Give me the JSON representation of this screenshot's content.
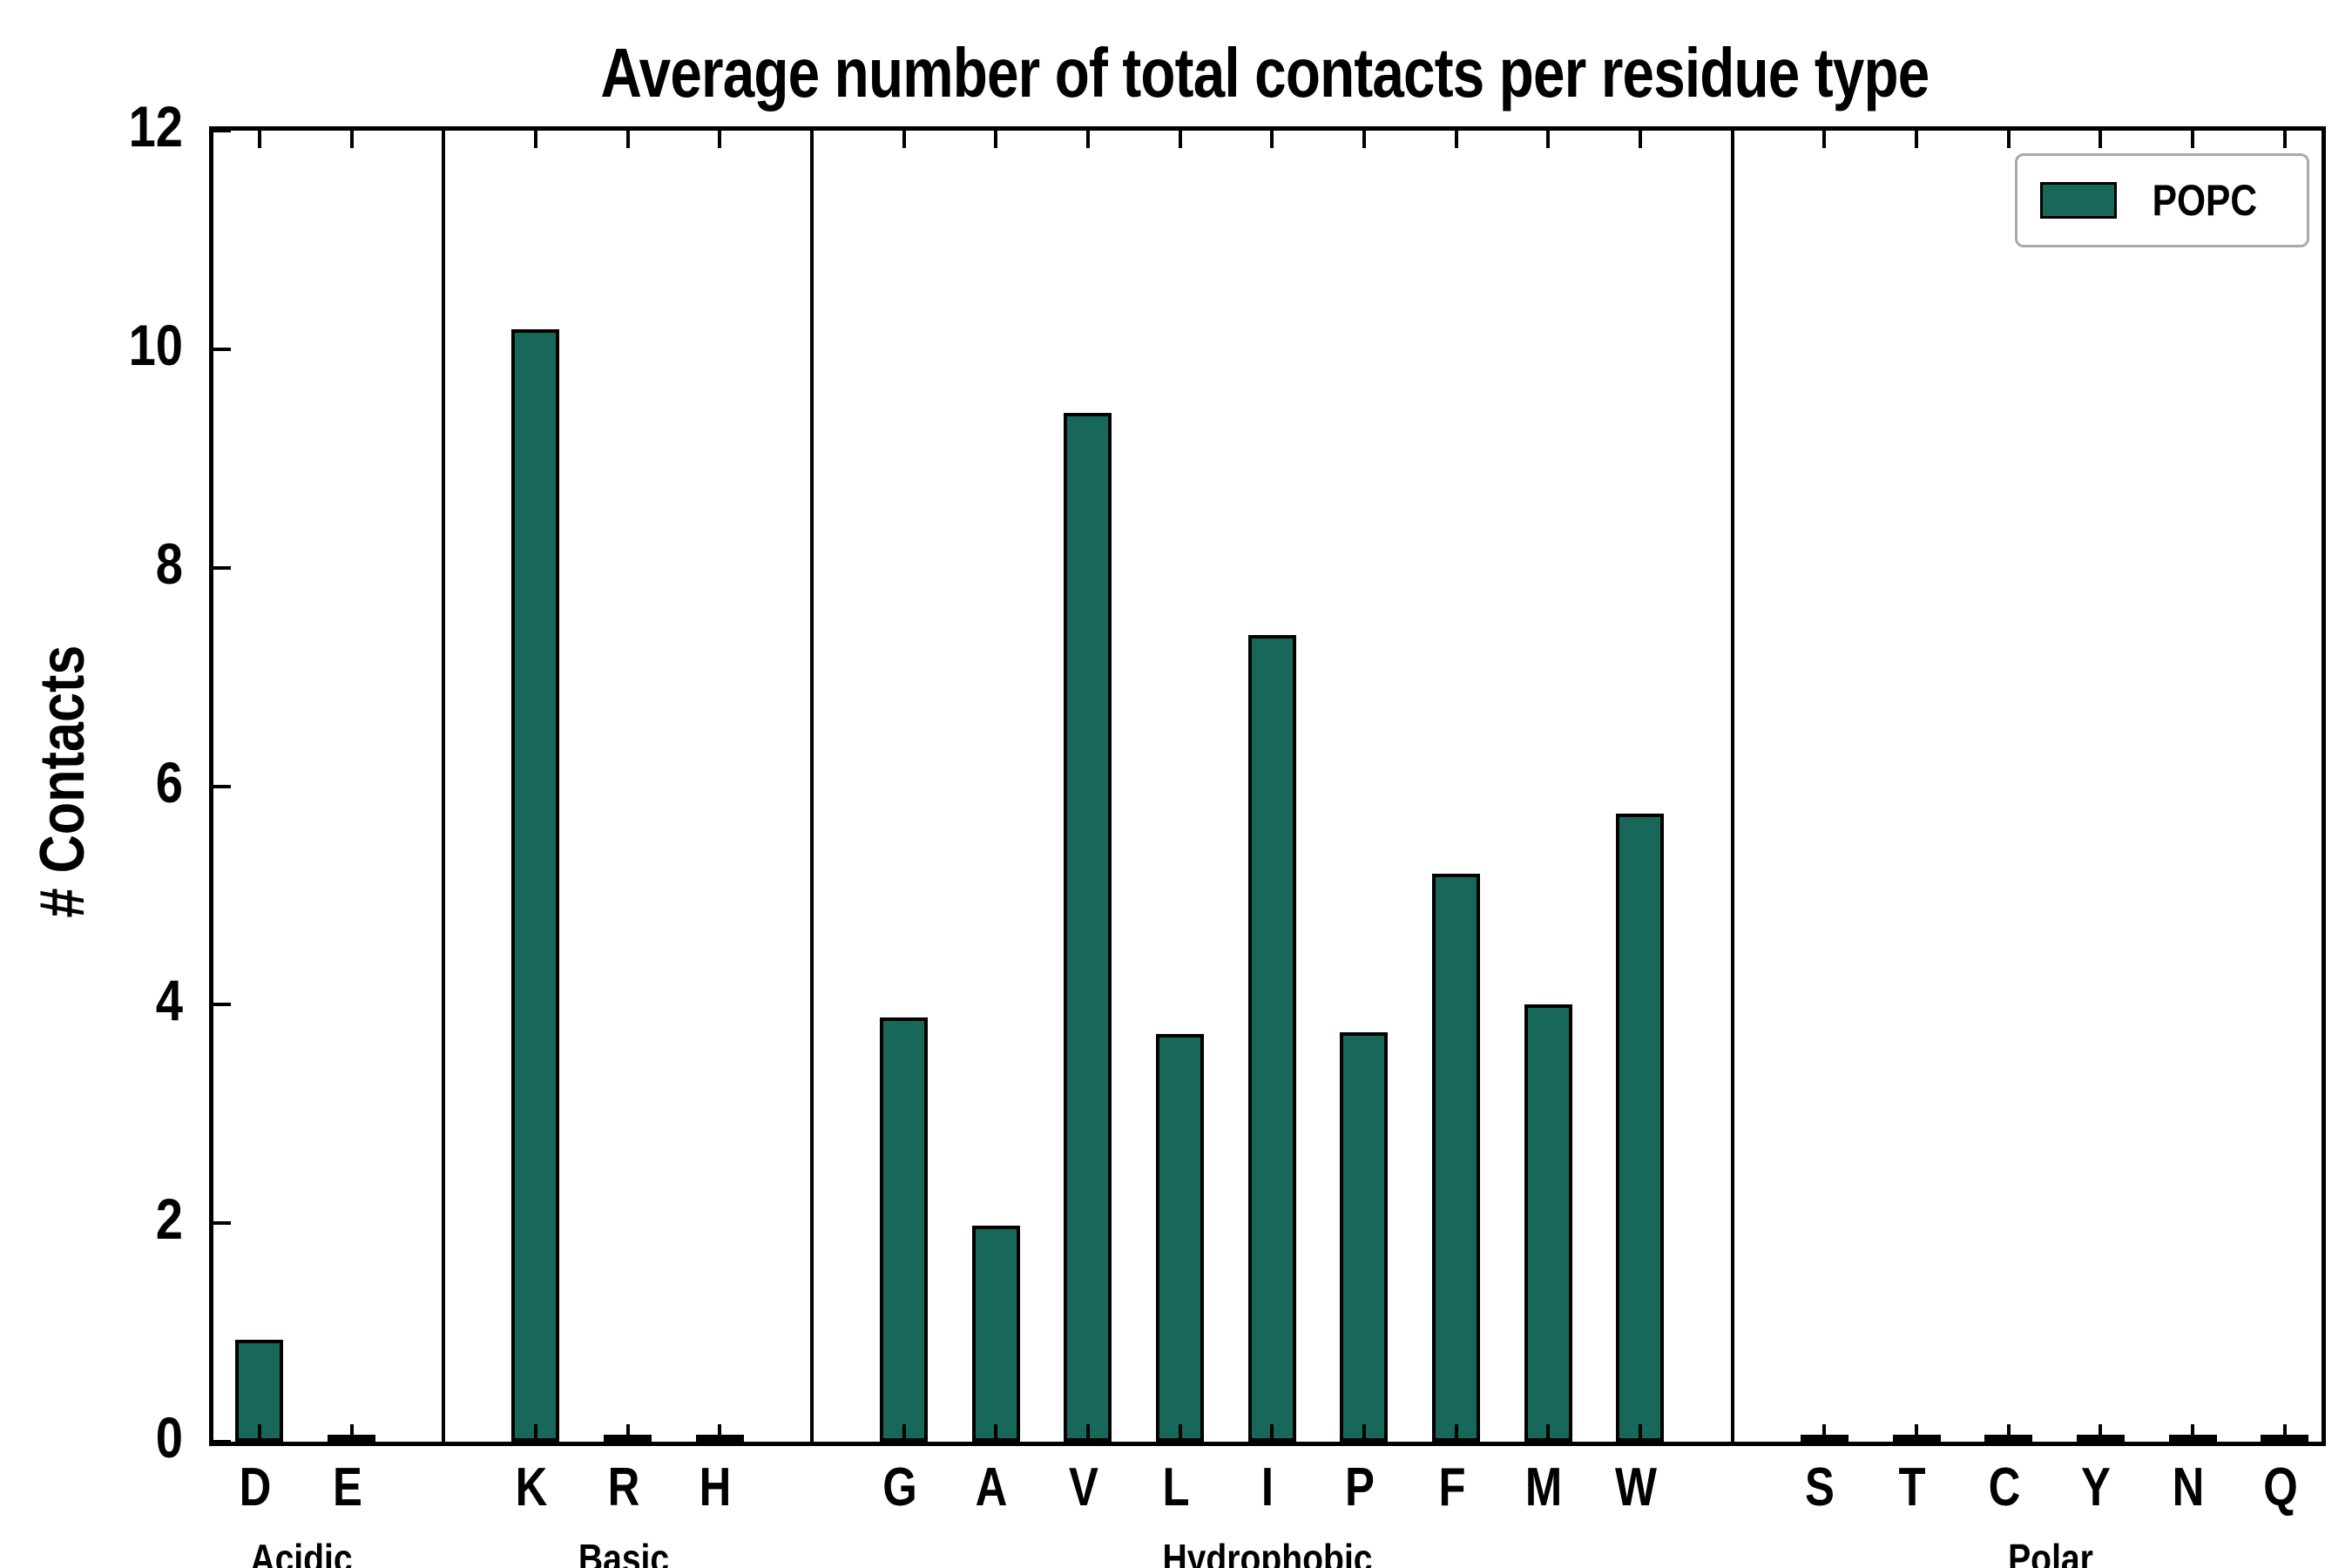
{
  "colors": {
    "bar": "#17685a",
    "edge": "#000000",
    "legend_border": "#a9a9a9"
  },
  "chart_data": {
    "type": "bar",
    "title": "Average number of total contacts per residue type",
    "ylabel": "# Contacts",
    "xlabel": "",
    "ylim": [
      0,
      12
    ],
    "yticks": [
      0,
      2,
      4,
      6,
      8,
      10,
      12
    ],
    "grid": false,
    "legend": {
      "label": "POPC",
      "position": "upper right"
    },
    "groups": [
      {
        "label": "Acidic",
        "residues": [
          "D",
          "E"
        ],
        "values": [
          0.93,
          0.02
        ]
      },
      {
        "label": "Basic",
        "residues": [
          "K",
          "R",
          "H"
        ],
        "values": [
          10.18,
          0.02,
          0.02
        ]
      },
      {
        "label": "Hydrophobic",
        "residues": [
          "G",
          "A",
          "V",
          "L",
          "I",
          "P",
          "F",
          "M",
          "W"
        ],
        "values": [
          3.88,
          1.98,
          9.42,
          3.73,
          7.38,
          3.75,
          5.2,
          4.0,
          5.75
        ]
      },
      {
        "label": "Polar",
        "residues": [
          "S",
          "T",
          "C",
          "Y",
          "N",
          "Q"
        ],
        "values": [
          0.02,
          0.02,
          0.02,
          0.02,
          0.02,
          0.02
        ]
      }
    ]
  }
}
